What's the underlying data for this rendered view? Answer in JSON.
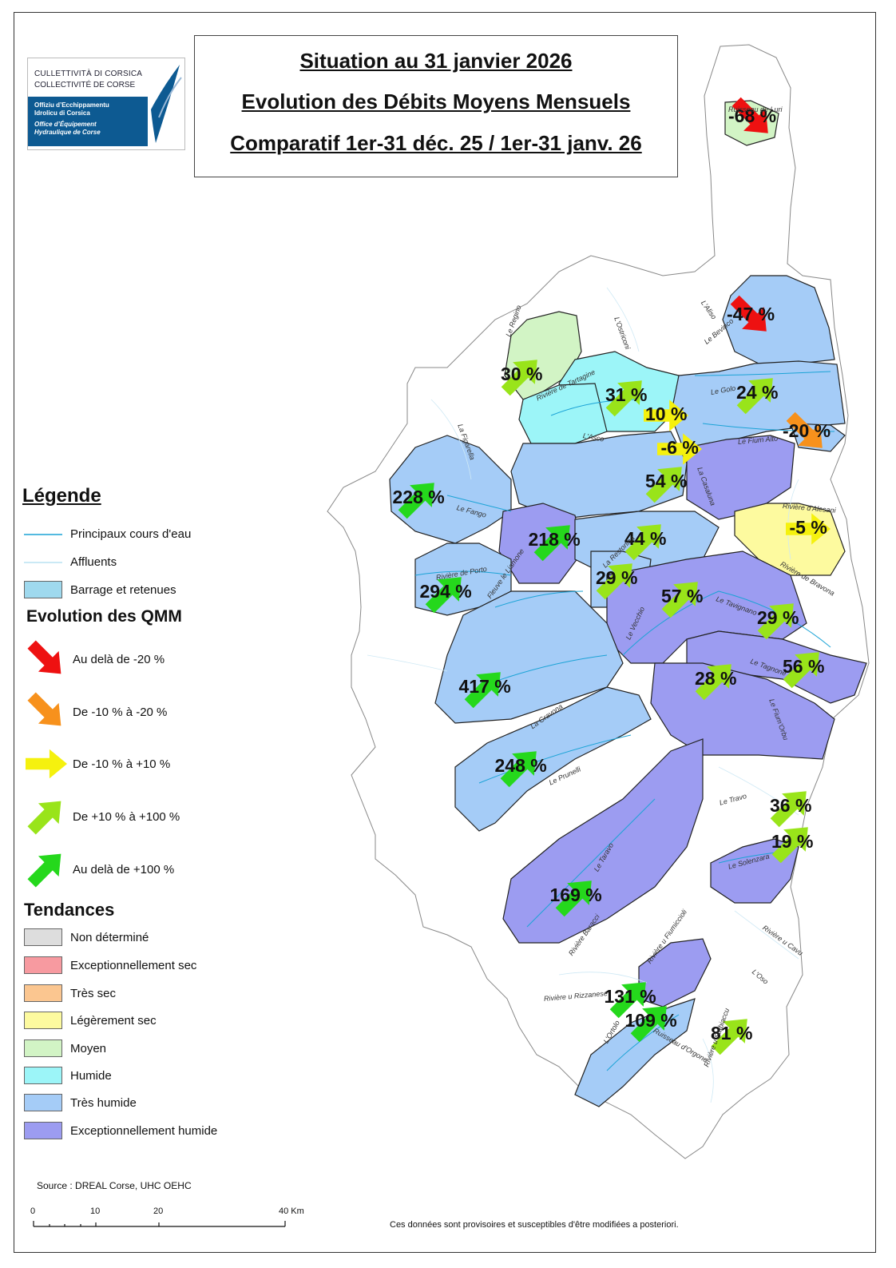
{
  "title": {
    "line1": "Situation au 31 janvier 2026",
    "line2": "Evolution des Débits Moyens Mensuels",
    "line3": "Comparatif 1er-31 déc. 25 / 1er-31 janv. 26"
  },
  "logo": {
    "name1": "CULLETTIVITÀ DI CORSICA",
    "name2": "COLLECTIVITÉ DE CORSE",
    "office_co1": "Offiziu d’Ecchippamentu",
    "office_co2": "Idrolicu di Corsica",
    "office_fr1": "Office d’Équipement",
    "office_fr2": "Hydraulique de Corse"
  },
  "legend": {
    "heading": "Légende",
    "lines": [
      {
        "label": "Principaux cours d'eau",
        "color": "#1ba3d6"
      },
      {
        "label": "Affluents",
        "color": "#b9e2f2"
      }
    ],
    "reservoir": {
      "label": "Barrage et retenues",
      "color": "#9fd9ee"
    },
    "qmm_heading": "Evolution des QMM",
    "qmm": [
      {
        "label": "Au delà de -20 %",
        "color": "#ee1111",
        "dir": "down"
      },
      {
        "label": "De -10 % à -20 %",
        "color": "#f7911c",
        "dir": "down"
      },
      {
        "label": "De -10 % à +10 %",
        "color": "#f5f10e",
        "dir": "right"
      },
      {
        "label": "De +10 % à +100 %",
        "color": "#99e41a",
        "dir": "up"
      },
      {
        "label": "Au delà de +100 %",
        "color": "#25d81c",
        "dir": "up"
      }
    ],
    "trend_heading": "Tendances",
    "trends": [
      {
        "label": "Non déterminé",
        "color": "#dddddd"
      },
      {
        "label": "Exceptionnellement sec",
        "color": "#f79aa0"
      },
      {
        "label": "Très sec",
        "color": "#fbc690"
      },
      {
        "label": "Légèrement sec",
        "color": "#fdfa9f"
      },
      {
        "label": "Moyen",
        "color": "#d2f4c5"
      },
      {
        "label": "Humide",
        "color": "#9cf5f8"
      },
      {
        "label": "Très humide",
        "color": "#a5ccf7"
      },
      {
        "label": "Exceptionnellement humide",
        "color": "#9c9cf1"
      }
    ]
  },
  "stations": [
    {
      "value": "-68 %",
      "arrow": "down",
      "color": "#ee1111"
    },
    {
      "value": "-47 %",
      "arrow": "down",
      "color": "#ee1111"
    },
    {
      "value": "30 %",
      "arrow": "up",
      "color": "#99e41a"
    },
    {
      "value": "31 %",
      "arrow": "up",
      "color": "#99e41a"
    },
    {
      "value": "24 %",
      "arrow": "up",
      "color": "#99e41a"
    },
    {
      "value": "10 %",
      "arrow": "right",
      "color": "#f5f10e"
    },
    {
      "value": "-20 %",
      "arrow": "down",
      "color": "#f7911c"
    },
    {
      "value": "-6 %",
      "arrow": "right",
      "color": "#f5f10e"
    },
    {
      "value": "54 %",
      "arrow": "up",
      "color": "#99e41a"
    },
    {
      "value": "228 %",
      "arrow": "up",
      "color": "#25d81c"
    },
    {
      "value": "-5 %",
      "arrow": "right",
      "color": "#f5f10e"
    },
    {
      "value": "218 %",
      "arrow": "up",
      "color": "#25d81c"
    },
    {
      "value": "44 %",
      "arrow": "up",
      "color": "#99e41a"
    },
    {
      "value": "294 %",
      "arrow": "up",
      "color": "#25d81c"
    },
    {
      "value": "29 %",
      "arrow": "up",
      "color": "#99e41a"
    },
    {
      "value": "57 %",
      "arrow": "up",
      "color": "#99e41a"
    },
    {
      "value": "29 %",
      "arrow": "up",
      "color": "#99e41a"
    },
    {
      "value": "56 %",
      "arrow": "up",
      "color": "#99e41a"
    },
    {
      "value": "28 %",
      "arrow": "up",
      "color": "#99e41a"
    },
    {
      "value": "417 %",
      "arrow": "up",
      "color": "#25d81c"
    },
    {
      "value": "248 %",
      "arrow": "up",
      "color": "#25d81c"
    },
    {
      "value": "36 %",
      "arrow": "up",
      "color": "#99e41a"
    },
    {
      "value": "19 %",
      "arrow": "up",
      "color": "#99e41a"
    },
    {
      "value": "169 %",
      "arrow": "up",
      "color": "#25d81c"
    },
    {
      "value": "131 %",
      "arrow": "up",
      "color": "#25d81c"
    },
    {
      "value": "109 %",
      "arrow": "up",
      "color": "#25d81c"
    },
    {
      "value": "81 %",
      "arrow": "up",
      "color": "#99e41a"
    }
  ],
  "rivers": [
    "Ruisseau de Luri",
    "L'Aliso",
    "L'Ostriconi",
    "Le Bevinco",
    "Le Regino",
    "Rivière de Tartagine",
    "Le Golo",
    "L'Asco",
    "La Figarella",
    "Le Fium Alto",
    "La Casaluna",
    "Le Fango",
    "Rivière d'Alesani",
    "Rivière de Porto",
    "La Restonica",
    "Rivière de Bravona",
    "Fleuve le Liamone",
    "Le Tavignano",
    "Le Vecchio",
    "Le Tagnone",
    "Le Fium'Orbu",
    "La Gravona",
    "Le Prunelli",
    "Le Travo",
    "Le Taravo",
    "Le Solenzara",
    "Rivière u Cavu",
    "Rivière Baracci",
    "Rivière u Rizzanese",
    "L'Oso",
    "Rivière u Fiumiccioli",
    "L'Ortolo",
    "Ruisseau d'Orgone",
    "Rivière u Stabiaccu"
  ],
  "scale": {
    "ticks": [
      "0",
      "10",
      "20",
      "40 Km"
    ]
  },
  "source": "Source : DREAL Corse, UHC OEHC",
  "disclaimer": "Ces données sont provisoires et susceptibles d'être modifiées a posteriori."
}
